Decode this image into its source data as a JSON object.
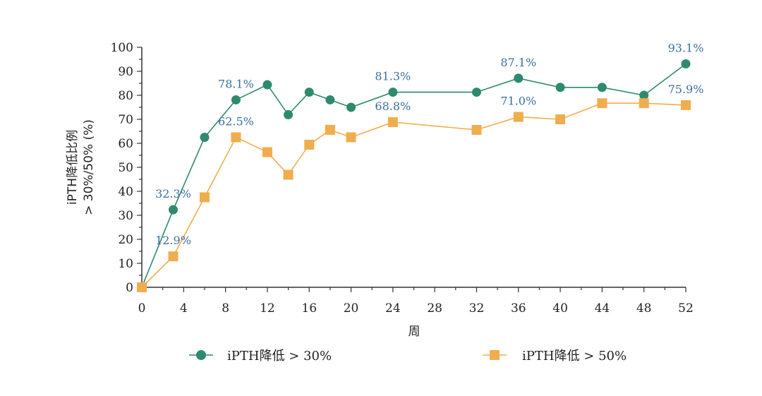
{
  "chart_data": {
    "type": "line",
    "xlabel": "周",
    "ylabel": [
      "iPTH降低比例",
      "> 30%/50% (%)"
    ],
    "xlim": [
      0,
      52
    ],
    "ylim": [
      0,
      100
    ],
    "xticks": [
      0,
      4,
      8,
      12,
      16,
      20,
      24,
      28,
      32,
      36,
      40,
      44,
      48,
      52
    ],
    "yticks": [
      0,
      10,
      20,
      30,
      40,
      50,
      60,
      70,
      80,
      90,
      100
    ],
    "grid": false,
    "legend_position": "bottom",
    "series": [
      {
        "name": "iPTH降低 > 30%",
        "marker": "circle",
        "color": "#2e8a6e",
        "x": [
          0,
          3,
          6,
          9,
          12,
          14,
          16,
          18,
          20,
          24,
          32,
          36,
          40,
          44,
          48,
          52
        ],
        "values": [
          0,
          32.3,
          62.5,
          78.1,
          84.4,
          71.9,
          81.3,
          78.1,
          75.0,
          81.3,
          81.3,
          87.1,
          83.3,
          83.3,
          80.0,
          93.1
        ]
      },
      {
        "name": "iPTH降低 > 50%",
        "marker": "square",
        "color": "#f0ad4e",
        "x": [
          0,
          3,
          6,
          9,
          12,
          14,
          16,
          18,
          20,
          24,
          32,
          36,
          40,
          44,
          48,
          52
        ],
        "values": [
          0,
          12.9,
          37.5,
          62.5,
          56.3,
          46.9,
          59.4,
          65.6,
          62.5,
          68.8,
          65.6,
          71.0,
          70.0,
          76.7,
          76.7,
          75.9
        ]
      }
    ],
    "annotations": [
      {
        "series": 0,
        "x": 3,
        "label": "32.3%"
      },
      {
        "series": 0,
        "x": 9,
        "label": "78.1%"
      },
      {
        "series": 0,
        "x": 24,
        "label": "81.3%"
      },
      {
        "series": 0,
        "x": 36,
        "label": "87.1%"
      },
      {
        "series": 0,
        "x": 52,
        "label": "93.1%"
      },
      {
        "series": 1,
        "x": 3,
        "label": "12.9%"
      },
      {
        "series": 1,
        "x": 9,
        "label": "62.5%"
      },
      {
        "series": 1,
        "x": 24,
        "label": "68.8%"
      },
      {
        "series": 1,
        "x": 36,
        "label": "71.0%"
      },
      {
        "series": 1,
        "x": 52,
        "label": "75.9%"
      }
    ],
    "annotation_color": "#3a6f9e"
  }
}
